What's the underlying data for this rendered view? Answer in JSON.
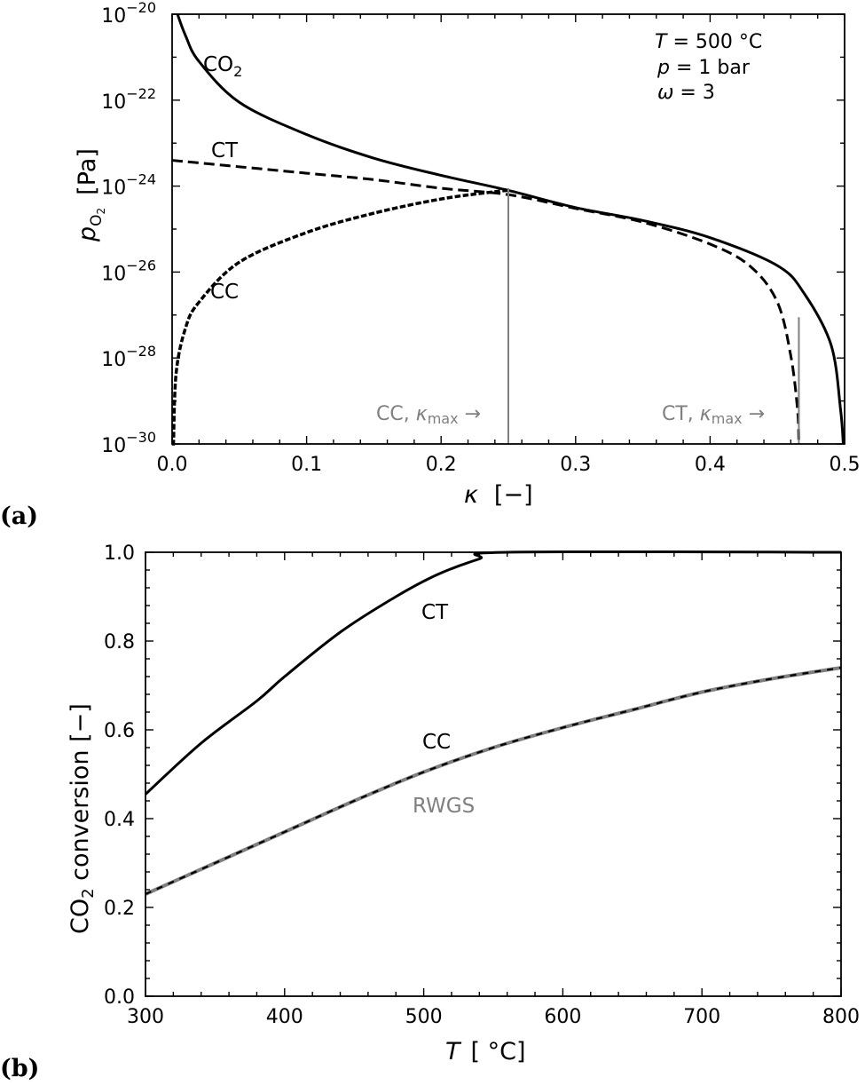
{
  "panels": {
    "a": {
      "label": "(a)"
    },
    "b": {
      "label": "(b)"
    }
  },
  "colors": {
    "line": "#000000",
    "gray": "#808080"
  },
  "chart_data": [
    {
      "type": "line",
      "id": "a",
      "xlabel": "κ [−]",
      "ylabel": "p_O2 [Pa]",
      "yscale": "log",
      "xlim": [
        0.0,
        0.5
      ],
      "ylim_log10": [
        -30,
        -20
      ],
      "x_ticks": [
        "0.0",
        "0.1",
        "0.2",
        "0.3",
        "0.4",
        "0.5"
      ],
      "y_ticks": [
        "10^-20",
        "10^-22",
        "10^-24",
        "10^-26",
        "10^-28",
        "10^-30"
      ],
      "annotations": [
        "T = 500 °C",
        "p = 1 bar",
        "ω = 3",
        "CC, κmax →",
        "CT, κmax →"
      ],
      "vlines": [
        {
          "name": "CC κmax",
          "x": 0.25,
          "y_top_log10": -24.05,
          "color": "#808080"
        },
        {
          "name": "CT κmax",
          "x": 0.466,
          "y_top_log10": -27.05,
          "color": "#808080"
        }
      ],
      "series": [
        {
          "name": "CO2",
          "style": "solid",
          "x": [
            0.004,
            0.01,
            0.02,
            0.05,
            0.1,
            0.15,
            0.2,
            0.25,
            0.3,
            0.35,
            0.4,
            0.45,
            0.47,
            0.49,
            0.497,
            0.499
          ],
          "log10_y": [
            -20.0,
            -20.5,
            -21.1,
            -22.05,
            -22.8,
            -23.35,
            -23.75,
            -24.1,
            -24.5,
            -24.8,
            -25.2,
            -25.85,
            -26.5,
            -27.7,
            -29.2,
            -30.0
          ]
        },
        {
          "name": "CT",
          "style": "dashed",
          "x": [
            0.0,
            0.05,
            0.1,
            0.15,
            0.2,
            0.25,
            0.3,
            0.35,
            0.4,
            0.43,
            0.45,
            0.46,
            0.465,
            0.466
          ],
          "log10_y": [
            -23.4,
            -23.55,
            -23.7,
            -23.85,
            -24.05,
            -24.2,
            -24.52,
            -24.84,
            -25.35,
            -25.87,
            -26.7,
            -27.95,
            -29.2,
            -30.0
          ]
        },
        {
          "name": "CC",
          "style": "dotted",
          "x": [
            0.001,
            0.003,
            0.01,
            0.02,
            0.05,
            0.1,
            0.15,
            0.2,
            0.24,
            0.25
          ],
          "log10_y": [
            -30.0,
            -28.35,
            -27.3,
            -26.7,
            -25.77,
            -25.08,
            -24.63,
            -24.3,
            -24.13,
            -24.1
          ]
        }
      ]
    },
    {
      "type": "line",
      "id": "b",
      "xlabel": "T [°C]",
      "ylabel": "CO2 conversion [−]",
      "xlim": [
        300,
        800
      ],
      "ylim": [
        0.0,
        1.0
      ],
      "x_ticks": [
        "300",
        "400",
        "500",
        "600",
        "700",
        "800"
      ],
      "y_ticks": [
        "0.0",
        "0.2",
        "0.4",
        "0.6",
        "0.8",
        "1.0"
      ],
      "series": [
        {
          "name": "CT",
          "style": "solid",
          "color": "#000000",
          "x": [
            300,
            340,
            380,
            400,
            440,
            480,
            510,
            540,
            560,
            800
          ],
          "y": [
            0.455,
            0.57,
            0.665,
            0.72,
            0.82,
            0.9,
            0.95,
            0.985,
            1.0,
            1.0
          ]
        },
        {
          "name": "RWGS",
          "style": "solid-gray",
          "color": "#808080",
          "x": [
            300,
            350,
            400,
            450,
            500,
            550,
            600,
            650,
            700,
            750,
            800
          ],
          "y": [
            0.23,
            0.3,
            0.37,
            0.44,
            0.505,
            0.56,
            0.605,
            0.645,
            0.685,
            0.715,
            0.74
          ]
        },
        {
          "name": "CC",
          "style": "dashed",
          "color": "#000000",
          "x": [
            300,
            350,
            400,
            450,
            500,
            550,
            600,
            650,
            700,
            750,
            800
          ],
          "y": [
            0.23,
            0.3,
            0.37,
            0.44,
            0.505,
            0.56,
            0.605,
            0.645,
            0.685,
            0.715,
            0.74
          ]
        }
      ]
    }
  ],
  "text": {
    "a_ann_T": "T",
    "a_ann_T_rest": " = 500 °C",
    "a_ann_p": "p",
    "a_ann_p_rest": " = 1 bar",
    "a_ann_w": "ω",
    "a_ann_w_rest": " = 3",
    "a_label_co2": "CO",
    "a_label_co2_sub": "2",
    "a_label_ct": "CT",
    "a_label_cc": "CC",
    "a_cc_kmax": "CC,  ",
    "a_ct_kmax": "CT,  ",
    "kappa": "κ",
    "max": "max",
    "arrow": " →",
    "a_xlabel_k": "κ",
    "a_xlabel_unit": "[−]",
    "a_ylabel_p": "p",
    "a_ylabel_sub": "O",
    "a_ylabel_subsub": "2",
    "a_ylabel_unit": "[Pa]",
    "b_label_ct": "CT",
    "b_label_cc": "CC",
    "b_label_rwgs": "RWGS",
    "b_xlabel_T": "T",
    "b_xlabel_unit": "[ °C]",
    "b_ylabel_co": "CO",
    "b_ylabel_sub": "2",
    "b_ylabel_rest": " conversion [−]"
  }
}
